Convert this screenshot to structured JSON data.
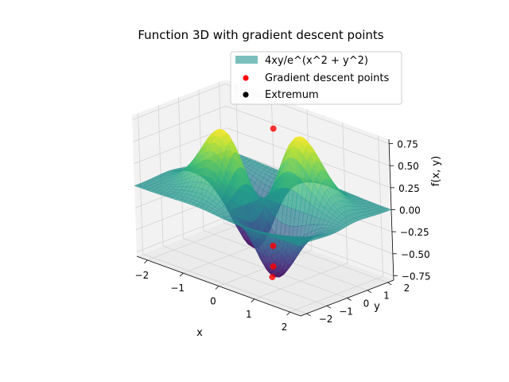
{
  "chart_data": {
    "type": "surface3d",
    "title": "Function 3D with gradient descent points",
    "xlabel": "x",
    "ylabel": "y",
    "zlabel": "f(x, y)",
    "x_ticks": [
      "−2",
      "−1",
      "0",
      "1",
      "2"
    ],
    "y_ticks": [
      "−2",
      "−1",
      "0",
      "1",
      "2"
    ],
    "z_ticks": [
      "−0.75",
      "−0.50",
      "−0.25",
      "0.00",
      "0.25",
      "0.50",
      "0.75"
    ],
    "xlim": [
      -2.3,
      2.3
    ],
    "ylim": [
      -2.3,
      2.3
    ],
    "zlim": [
      -0.8,
      0.8
    ],
    "grid": true,
    "legend": {
      "placement": "top-right",
      "entries": [
        {
          "label": "4xy/e^(x^2 + y^2)",
          "kind": "surface-patch",
          "color": "#7bbfbc"
        },
        {
          "label": "Gradient descent points",
          "kind": "marker",
          "color": "#ff0000"
        },
        {
          "label": "Extremum",
          "kind": "marker",
          "color": "#000000"
        }
      ]
    },
    "surface": {
      "function": "4xy/e^(x^2 + y^2)",
      "x_range": [
        -2.3,
        2.3
      ],
      "y_range": [
        -2.3,
        2.3
      ],
      "colormap": "viridis",
      "alpha": 0.7
    },
    "gradient_descent_points": {
      "color": "#ff0000",
      "points": [
        {
          "x": 0.6,
          "y": -0.7,
          "z": -0.75
        },
        {
          "x": 0.55,
          "y": -0.55,
          "z": -0.65
        },
        {
          "x": 0.45,
          "y": -0.35,
          "z": -0.45
        },
        {
          "x": -0.1,
          "y": 0.8,
          "z": 0.7
        }
      ]
    }
  }
}
